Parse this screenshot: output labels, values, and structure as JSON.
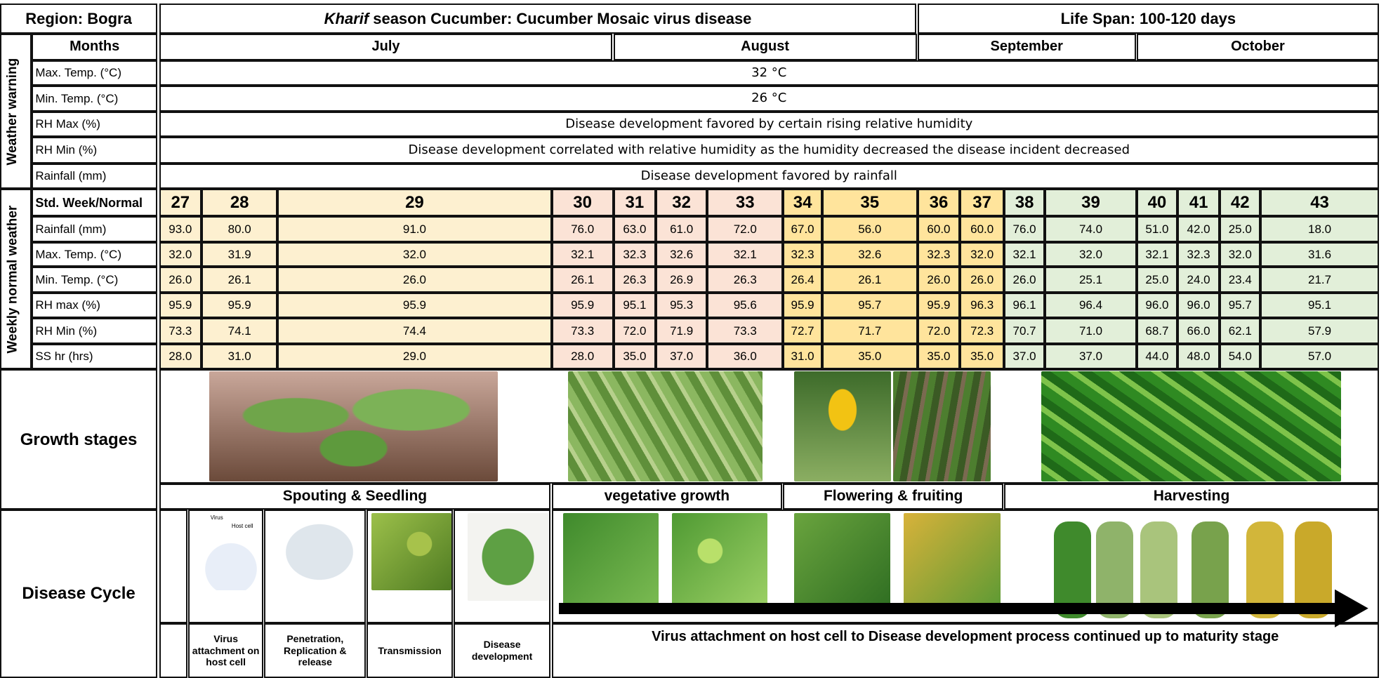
{
  "header": {
    "region": "Region: Bogra",
    "title_italic": "Kharif",
    "title": "season Cucumber: Cucumber Mosaic virus disease",
    "life_span": "Life Span: 100-120 days"
  },
  "weather_warning": {
    "side_label": "Weather warning",
    "months_label": "Months",
    "months": [
      "July",
      "August",
      "September",
      "October"
    ],
    "rows": [
      {
        "label": "Max. Temp. (°C)",
        "text": "32 °C"
      },
      {
        "label": "Min. Temp. (°C)",
        "text": "26 °C"
      },
      {
        "label": "RH Max (%)",
        "text": "Disease development favored by certain rising relative humidity"
      },
      {
        "label": "RH Min (%)",
        "text": "Disease development correlated with relative humidity as the humidity decreased the disease incident decreased"
      },
      {
        "label": "Rainfall (mm)",
        "text": "Disease development favored by rainfall"
      }
    ]
  },
  "weekly_normal": {
    "side_label": "Weekly normal weather",
    "week_label": "Std. Week/Normal",
    "weeks": [
      "27",
      "28",
      "29",
      "30",
      "31",
      "32",
      "33",
      "34",
      "35",
      "36",
      "37",
      "38",
      "39",
      "40",
      "41",
      "42",
      "43"
    ],
    "rows": [
      {
        "label": "Rainfall (mm)",
        "values": [
          "93.0",
          "80.0",
          "91.0",
          "76.0",
          "63.0",
          "61.0",
          "72.0",
          "67.0",
          "56.0",
          "60.0",
          "60.0",
          "76.0",
          "74.0",
          "51.0",
          "42.0",
          "25.0",
          "18.0"
        ]
      },
      {
        "label": "Max. Temp. (°C)",
        "values": [
          "32.0",
          "31.9",
          "32.0",
          "32.1",
          "32.3",
          "32.6",
          "32.1",
          "32.3",
          "32.6",
          "32.3",
          "32.0",
          "32.1",
          "32.0",
          "32.1",
          "32.3",
          "32.0",
          "31.6"
        ]
      },
      {
        "label": "Min. Temp. (°C)",
        "values": [
          "26.0",
          "26.1",
          "26.0",
          "26.1",
          "26.3",
          "26.9",
          "26.3",
          "26.4",
          "26.1",
          "26.0",
          "26.0",
          "26.0",
          "25.1",
          "25.0",
          "24.0",
          "23.4",
          "21.7"
        ]
      },
      {
        "label": "RH max (%)",
        "values": [
          "95.9",
          "95.9",
          "95.9",
          "95.9",
          "95.1",
          "95.3",
          "95.6",
          "95.9",
          "95.7",
          "95.9",
          "96.3",
          "96.1",
          "96.4",
          "96.0",
          "96.0",
          "95.7",
          "95.1"
        ]
      },
      {
        "label": "RH Min (%)",
        "values": [
          "73.3",
          "74.1",
          "74.4",
          "73.3",
          "72.0",
          "71.9",
          "73.3",
          "72.7",
          "71.7",
          "72.0",
          "72.3",
          "70.7",
          "71.0",
          "68.7",
          "66.0",
          "62.1",
          "57.9"
        ]
      },
      {
        "label": "SS hr (hrs)",
        "values": [
          "28.0",
          "31.0",
          "29.0",
          "28.0",
          "35.0",
          "37.0",
          "36.0",
          "31.0",
          "35.0",
          "35.0",
          "35.0",
          "37.0",
          "37.0",
          "44.0",
          "48.0",
          "54.0",
          "57.0"
        ]
      }
    ]
  },
  "growth_stages": {
    "label": "Growth stages",
    "stages": [
      "Spouting & Seedling",
      "vegetative growth",
      "Flowering & fruiting",
      "Harvesting"
    ]
  },
  "disease_cycle": {
    "label": "Disease Cycle",
    "diagram_labels": [
      "Virus",
      "Host cell"
    ],
    "steps": [
      "Virus attachment on host cell",
      "Penetration, Replication & release",
      "Transmission",
      "Disease development"
    ],
    "summary": "Virus attachment on host cell to Disease development process continued up to maturity stage"
  }
}
